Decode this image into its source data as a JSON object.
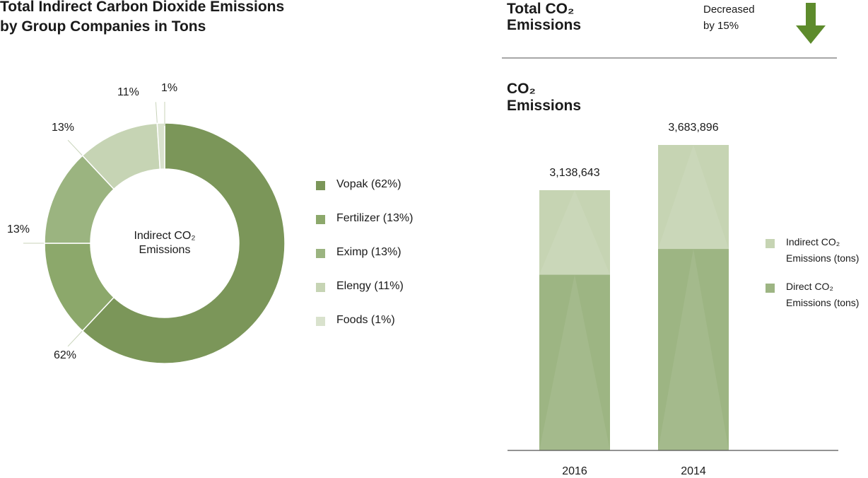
{
  "header": {
    "title": "Total CO₂\nEmissions",
    "note": "Decreased\nby 15%"
  },
  "chart_data": [
    {
      "type": "pie",
      "donut": true,
      "title": "Total Indirect Carbon Dioxide Emissions\nby Group Companies in Tons",
      "center_label": "Indirect CO₂\nEmissions",
      "categories": [
        "Vopak (62%)",
        "Fertilizer (13%)",
        "Eximp (13%)",
        "Elengy (11%)",
        "Foods (1%)"
      ],
      "values": [
        62,
        13,
        13,
        11,
        1
      ],
      "value_labels": [
        "62%",
        "13%",
        "13%",
        "11%",
        "1%"
      ],
      "colors": [
        "#7b9659",
        "#8ca86b",
        "#9bb480",
        "#c6d4b4",
        "#d9e2cd"
      ]
    },
    {
      "type": "stacked_bar",
      "title": "CO₂\nEmissions",
      "categories": [
        "2016",
        "2014"
      ],
      "series": [
        {
          "name": "Indirect CO₂\nEmissions (tons)",
          "color": "#c6d4b3",
          "values": [
            1018643,
            1253896
          ]
        },
        {
          "name": "Direct CO₂\nEmissions (tons)",
          "color": "#9db583",
          "values": [
            2120000,
            2430000
          ]
        }
      ],
      "totals": [
        3138643,
        3683896
      ],
      "total_labels": [
        "3,138,643",
        "3,683,896"
      ]
    }
  ]
}
